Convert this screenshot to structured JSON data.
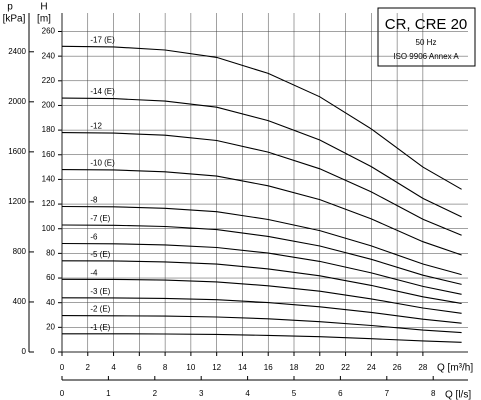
{
  "chart_data": {
    "type": "line",
    "title": "CR, CRE 20",
    "subtitle": "50 Hz",
    "annotation": "ISO 9906 Annex A",
    "ylabel": "H",
    "yunit": "[m]",
    "y2label": "p",
    "y2unit": "[kPa]",
    "xlabel": "Q [m³/h]",
    "x2label": "Q [l/s]",
    "x": [
      0,
      4,
      8,
      12,
      16,
      20,
      24,
      28,
      31
    ],
    "xlim": [
      0,
      31.5
    ],
    "xticks": [
      0,
      2,
      4,
      6,
      8,
      10,
      12,
      14,
      16,
      18,
      20,
      22,
      24,
      26,
      28
    ],
    "x2lim": [
      0,
      8.75
    ],
    "x2ticks": [
      0,
      1,
      2,
      3,
      4,
      5,
      6,
      7,
      8
    ],
    "ylim": [
      0,
      275
    ],
    "yticks": [
      0,
      20,
      40,
      60,
      80,
      100,
      120,
      140,
      160,
      180,
      200,
      220,
      240,
      260
    ],
    "y2lim": [
      0,
      2710
    ],
    "y2ticks": [
      0,
      400,
      800,
      1200,
      1600,
      2000,
      2400
    ],
    "grid": true,
    "series": [
      {
        "name": "-17 (E)",
        "color": "#000000",
        "values": [
          248,
          247.5,
          245,
          239,
          226,
          207,
          181,
          150,
          132
        ]
      },
      {
        "name": "-14 (E)",
        "color": "#000000",
        "values": [
          206,
          205.6,
          203.5,
          198.6,
          187.7,
          172,
          150.4,
          124.6,
          109.6
        ]
      },
      {
        "name": "-12",
        "color": "#000000",
        "values": [
          178,
          177.6,
          175.9,
          171.6,
          162.2,
          148.6,
          129.9,
          107.7,
          94.7
        ]
      },
      {
        "name": "-10 (E)",
        "color": "#000000",
        "values": [
          148,
          147.7,
          146.2,
          142.7,
          134.8,
          123.6,
          108.0,
          89.5,
          78.7
        ]
      },
      {
        "name": "-8",
        "color": "#000000",
        "values": [
          118,
          117.8,
          116.6,
          113.8,
          107.5,
          98.5,
          86.1,
          71.4,
          62.8
        ]
      },
      {
        "name": "-7 (E)",
        "color": "#000000",
        "values": [
          103,
          102.8,
          101.8,
          99.3,
          93.8,
          86.0,
          75.2,
          62.3,
          54.8
        ]
      },
      {
        "name": "-6",
        "color": "#000000",
        "values": [
          88,
          87.8,
          86.9,
          84.8,
          80.2,
          73.5,
          64.2,
          53.2,
          46.8
        ]
      },
      {
        "name": "-5 (E)",
        "color": "#000000",
        "values": [
          74,
          73.9,
          73.1,
          71.3,
          67.4,
          61.8,
          54.0,
          44.8,
          39.4
        ]
      },
      {
        "name": "-4",
        "color": "#000000",
        "values": [
          59,
          58.9,
          58.3,
          56.9,
          53.7,
          49.3,
          43.1,
          35.7,
          31.4
        ]
      },
      {
        "name": "-3 (E)",
        "color": "#000000",
        "values": [
          44,
          43.9,
          43.5,
          42.4,
          40.1,
          36.7,
          32.1,
          26.6,
          23.4
        ]
      },
      {
        "name": "-2 (E)",
        "color": "#000000",
        "values": [
          29.5,
          29.4,
          29.1,
          28.4,
          26.9,
          24.6,
          21.5,
          17.8,
          15.7
        ]
      },
      {
        "name": "-1 (E)",
        "color": "#000000",
        "values": [
          14.8,
          14.8,
          14.6,
          14.3,
          13.5,
          12.4,
          10.8,
          9.0,
          7.9
        ]
      }
    ]
  }
}
